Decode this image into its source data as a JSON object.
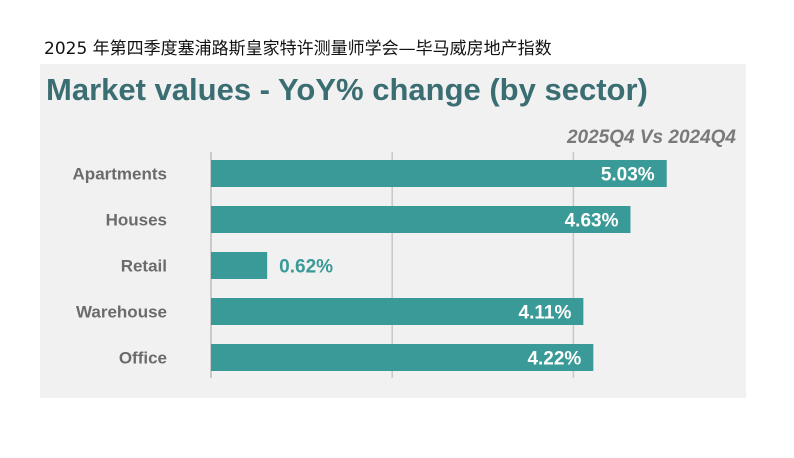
{
  "caption": "2025 年第四季度塞浦路斯皇家特许测量师学会—毕马威房地产指数",
  "chart_data": {
    "type": "bar",
    "orientation": "horizontal",
    "title": "Market values - YoY% change (by sector)",
    "subtitle": "2025Q4 Vs 2024Q4",
    "categories": [
      "Apartments",
      "Houses",
      "Retail",
      "Warehouse",
      "Office"
    ],
    "values": [
      5.03,
      4.63,
      0.62,
      4.11,
      4.22
    ],
    "data_labels": [
      "5.03%",
      "4.63%",
      "0.62%",
      "4.11%",
      "4.22%"
    ],
    "xlim": [
      0,
      6
    ],
    "grid": true,
    "bar_color": "#3a9a97",
    "title_color": "#3b6e73"
  }
}
